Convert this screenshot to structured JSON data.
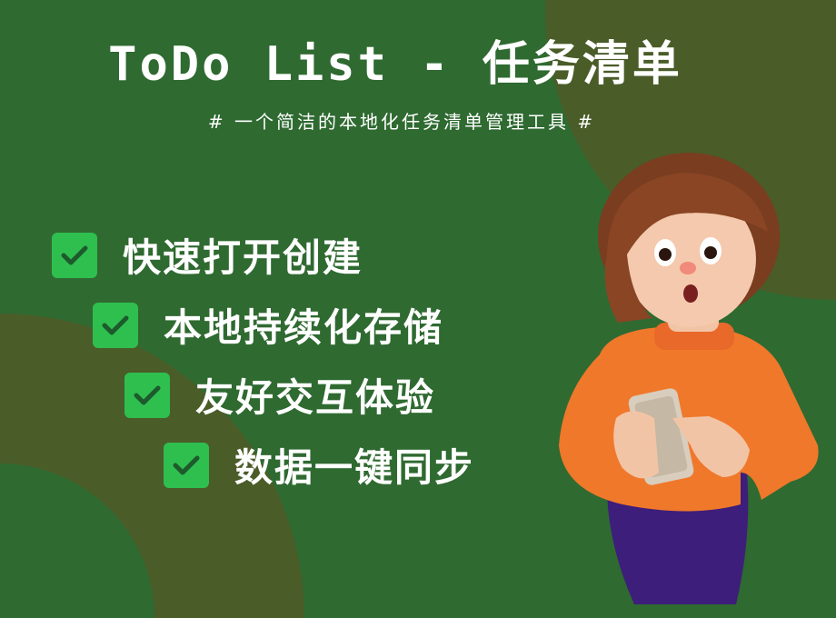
{
  "header": {
    "title": "ToDo List - 任务清单",
    "subtitle": "# 一个简洁的本地化任务清单管理工具 #"
  },
  "features": [
    {
      "label": "快速打开创建",
      "icon": "check-icon"
    },
    {
      "label": "本地持续化存储",
      "icon": "check-icon"
    },
    {
      "label": "友好交互体验",
      "icon": "check-icon"
    },
    {
      "label": "数据一键同步",
      "icon": "check-icon"
    }
  ],
  "colors": {
    "background": "#2f6a31",
    "shape_olive": "#4a5c28",
    "check_green": "#2fbf4f",
    "text": "#ffffff"
  }
}
